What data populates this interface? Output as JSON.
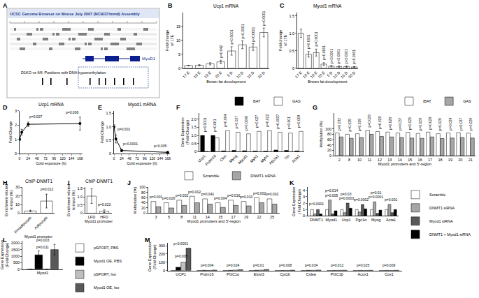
{
  "genome_browser": {
    "panel": "A",
    "title": "UCSC Genome Browser on Mouse July 2007 (NCBI37/mm9) Assembly",
    "gene": "MyoD1",
    "track": "D1KO vs fl/fl: Positions with DNA hypomethylation"
  },
  "chart_data": [
    {
      "panel": "B",
      "type": "bar",
      "title": "Ucp1 mRNA",
      "x_label": "Brown fat development",
      "y_label": "Fold change of 17E",
      "categories": [
        "17 E",
        "18 E",
        "19 E",
        "20 E",
        "5 D",
        "10 D",
        "15 D",
        "30 D"
      ],
      "values": [
        1,
        1.1,
        1.6,
        2.3,
        6.2,
        8.4,
        7.6,
        12.8
      ],
      "errors": [
        0.1,
        0.2,
        0.4,
        0.6,
        1.5,
        1.4,
        1.2,
        1.6
      ],
      "color": "#ffffff",
      "ylim": [
        0,
        20
      ],
      "yticks": [
        0,
        5,
        10,
        15
      ],
      "annotations": [
        {
          "text": "p=0.042",
          "category": "20 E",
          "y": 3.2
        },
        {
          "text": "p<0.0001",
          "category": "5 D",
          "y": 8
        },
        {
          "text": "p<0.0001",
          "category": "10 D",
          "y": 10.1
        },
        {
          "text": "p<0.0001",
          "category": "15 D",
          "y": 9.1
        },
        {
          "text": "p<0.0001",
          "category": "30 D",
          "y": 14.7
        }
      ]
    },
    {
      "panel": "C",
      "type": "bar",
      "title": "Myod1 mRNA",
      "x_label": "Brown fat development",
      "y_label": "Fold change of 17E",
      "categories": [
        "17 E",
        "18 E",
        "19 E",
        "20 E",
        "5 D",
        "10 D",
        "15 D",
        "30 D"
      ],
      "values": [
        1,
        0.4,
        0.45,
        0.12,
        0.06,
        0.05,
        0.05,
        0.04
      ],
      "errors": [
        0.12,
        0.08,
        0.1,
        0.04,
        0.02,
        0.02,
        0.02,
        0.01
      ],
      "color": "#ffffff",
      "ylim": [
        0,
        1.6
      ],
      "yticks": [
        0,
        0.5,
        {
          "value": 1,
          "label": "1.0"
        },
        1.5
      ],
      "annotations": [
        {
          "text": "p=0.0001",
          "category": "18 E",
          "y": 0.51
        },
        {
          "text": "p=0.0001",
          "category": "19 E",
          "y": 0.58
        },
        {
          "text": "p<0.0001",
          "category": "20 E",
          "y": 0.19
        },
        {
          "text": "p<0.0001",
          "category": "5 D",
          "y": 0.11
        },
        {
          "text": "p<0.0001",
          "category": "10 D",
          "y": 0.1
        },
        {
          "text": "p<0.0001",
          "category": "15 D",
          "y": 0.1
        },
        {
          "text": "p<0.0001",
          "category": "30 D",
          "y": 0.08
        }
      ]
    },
    {
      "panel": "D",
      "type": "line",
      "title": "Ucp1 mRNA",
      "x_label": "Cold exposure (h)",
      "y_label": "Fold Change",
      "x": [
        0,
        6,
        24,
        168
      ],
      "values": [
        1,
        1.5,
        2.05,
        2.1
      ],
      "errors": [
        0.05,
        0.2,
        0.15,
        0.45
      ],
      "color": "#000000",
      "marker": "circle",
      "xlim": [
        0,
        175
      ],
      "xticks": [
        0,
        24,
        48,
        72,
        96,
        120,
        144,
        168
      ],
      "ylim": [
        0,
        3
      ],
      "yticks": [
        0,
        1,
        2,
        3
      ],
      "annotations": [
        {
          "text": "p=0.007",
          "x": 24,
          "y": 2.35
        },
        {
          "text": "p=0.006",
          "x": 168,
          "y": 2.65
        }
      ]
    },
    {
      "panel": "E",
      "type": "line",
      "title": "Myod1 mRNA",
      "x_label": "Cold exposure (h)",
      "y_label": "Fold Change",
      "x": [
        0,
        6,
        24,
        168
      ],
      "values": [
        1,
        0.55,
        0.12,
        0.05
      ],
      "errors": [
        0.08,
        0.15,
        0.05,
        0.03
      ],
      "color": "#000000",
      "marker": "circle",
      "xlim": [
        0,
        175
      ],
      "xticks": [
        0,
        24,
        48,
        72,
        96,
        120,
        144,
        168
      ],
      "ylim": [
        0,
        1.6
      ],
      "yticks": [
        0,
        0.5,
        {
          "value": 1,
          "label": "1.0"
        },
        1.5
      ],
      "annotations": [
        {
          "text": "p=0.001",
          "x": 6,
          "y": 0.78
        },
        {
          "text": "p<0.0001",
          "x": 24,
          "y": 0.25
        },
        {
          "text": "p<0.005",
          "x": 168,
          "y": 0.15
        }
      ]
    },
    {
      "panel": "F",
      "type": "bar",
      "y_label": "Gene Expression (Fold Change)",
      "categories": [
        "Ucp1",
        "Prdm16",
        "Ckm",
        "Myog",
        "Myod1",
        "Myh1",
        "Myh4",
        "Atp2a1",
        "Ttn",
        "Acta1"
      ],
      "series": [
        {
          "name": "BAT",
          "color": "#000000",
          "values": [
            1,
            1,
            0.05,
            0.08,
            0.06,
            0.04,
            0.03,
            0.1,
            0.08,
            0.05
          ]
        },
        {
          "name": "GAS",
          "color": "#ffffff",
          "values": [
            0.02,
            0.85,
            1.3,
            1.2,
            1.1,
            1.25,
            1.3,
            1.2,
            1.15,
            1.25
          ]
        }
      ],
      "legend": "top right",
      "ylim": [
        0,
        2.4
      ],
      "yticks": [
        0,
        0.5,
        {
          "value": 1,
          "label": "1.0"
        },
        1.5,
        {
          "value": 2,
          "label": "2.0"
        }
      ],
      "annotations": [
        {
          "text": "p<0.0001",
          "category": "Ucp1",
          "y": 1.12
        },
        {
          "text": "p=0.001",
          "category": "Prdm16",
          "y": 1.12
        },
        {
          "text": "p=0.004",
          "category": "Ckm",
          "y": 1.42
        },
        {
          "text": "p=0.027",
          "category": "Myog",
          "y": 1.32
        },
        {
          "text": "p=0.0006",
          "category": "Myod1",
          "y": 1.22
        },
        {
          "text": "p=0.027",
          "category": "Myh1",
          "y": 1.37
        },
        {
          "text": "p=0.022",
          "category": "Myh4",
          "y": 1.42
        },
        {
          "text": "p=0.0037",
          "category": "Atp2a1",
          "y": 1.32
        },
        {
          "text": "p=0.001",
          "category": "Ttn",
          "y": 1.27
        },
        {
          "text": "p=0.009",
          "category": "Acta1",
          "y": 1.37
        }
      ]
    },
    {
      "panel": "G",
      "type": "bar",
      "x_label": "Myod1 promoters and 5'-region",
      "y_label": "Methylation (%)",
      "categories": [
        "2",
        "8",
        "10",
        "11",
        "12",
        "13",
        "14",
        "15",
        "16",
        "17",
        "18",
        "19",
        "20",
        "21"
      ],
      "series": [
        {
          "name": "iBAT",
          "color": "#ffffff",
          "values": [
            85,
            80,
            82,
            95,
            90,
            88,
            85,
            87,
            83,
            88,
            82,
            85,
            86,
            84
          ]
        },
        {
          "name": "GAS",
          "color": "#a6a6a6",
          "values": [
            70,
            65,
            68,
            80,
            72,
            70,
            68,
            66,
            65,
            70,
            64,
            66,
            68,
            66
          ]
        }
      ],
      "legend": "top right",
      "ylim": [
        0,
        160
      ],
      "yticks": [
        0,
        20,
        40,
        60,
        80,
        100
      ],
      "annotations": [
        {
          "text": "p=0.032",
          "category": "2",
          "y": 89
        },
        {
          "text": "p=0.029",
          "category": "8",
          "y": 84
        },
        {
          "text": "p=0.029",
          "category": "10",
          "y": 86
        },
        {
          "text": "p=0.029",
          "category": "11",
          "y": 99
        },
        {
          "text": "p=0.029",
          "category": "12",
          "y": 94
        },
        {
          "text": "p=0.029",
          "category": "13",
          "y": 92
        },
        {
          "text": "p=0.037",
          "category": "14",
          "y": 89
        },
        {
          "text": "p=0.029",
          "category": "15",
          "y": 91
        },
        {
          "text": "p=0.029",
          "category": "16",
          "y": 87
        },
        {
          "text": "p=0.029",
          "category": "17",
          "y": 92
        },
        {
          "text": "p=0.029",
          "category": "18",
          "y": 86
        },
        {
          "text": "p=0.029",
          "category": "19",
          "y": 89
        },
        {
          "text": "p=0.037",
          "category": "20",
          "y": 90
        },
        {
          "text": "p=0.029",
          "category": "21",
          "y": 88
        }
      ]
    },
    {
      "panel": "H",
      "type": "bar",
      "title": "ChIP-DNMT1",
      "x_label": "Myod1 promoter",
      "y_label": "Enrichment related to input (%)",
      "categories": [
        "Preadipocyte",
        "Adipocyte"
      ],
      "values": [
        2.5,
        14
      ],
      "errors": [
        1,
        8
      ],
      "color": "#ffffff",
      "ylim": [
        0,
        30
      ],
      "yticks": [
        0,
        10,
        20,
        30
      ],
      "annotations": [
        {
          "text": "p=0.012",
          "category": "Adipocyte",
          "y": 24
        }
      ]
    },
    {
      "panel": "I",
      "type": "bar",
      "title": "ChIP-DNMT1",
      "x_label": "Myod1 promoter",
      "y_label": "Enrichment related to input (%)",
      "categories": [
        "LFD",
        "HFD"
      ],
      "values": [
        1.05,
        0.12
      ],
      "errors": [
        0.45,
        0.08
      ],
      "color": "#ffffff",
      "ylim": [
        0,
        1.6
      ],
      "yticks": [
        0,
        0.5,
        {
          "value": 1,
          "label": "1.0"
        },
        1.5
      ],
      "annotations": [
        {
          "text": "p=0.023",
          "category": "HFD",
          "y": 0.3
        }
      ]
    },
    {
      "panel": "J",
      "type": "bar",
      "x_label": "Myod1 promoters and 5'-region",
      "y_label": "Methylation (%)",
      "categories": [
        "3",
        "5",
        "8",
        "11",
        "14",
        "15",
        "17",
        "19",
        "22",
        "25"
      ],
      "series": [
        {
          "name": "Scramble",
          "color": "#ffffff",
          "values": [
            45,
            40,
            50,
            65,
            55,
            40,
            50,
            45,
            60,
            55
          ]
        },
        {
          "name": "DNMT1 siRNA",
          "color": "#a6a6a6",
          "values": [
            25,
            20,
            30,
            40,
            35,
            22,
            30,
            28,
            40,
            35
          ]
        }
      ],
      "legend": "top right",
      "ylim": [
        0,
        100
      ],
      "yticks": [
        0,
        20,
        40,
        60,
        80,
        100
      ],
      "annotations": [
        {
          "text": "p=0.001",
          "category": "3",
          "y": 49
        },
        {
          "text": "p=0.026",
          "category": "5",
          "y": 44
        },
        {
          "text": "p=0.002",
          "category": "8",
          "y": 54
        },
        {
          "text": "p=0.002",
          "category": "11",
          "y": 69
        },
        {
          "text": "p=0.041",
          "category": "14",
          "y": 59
        },
        {
          "text": "p=0.004",
          "category": "15",
          "y": 44
        },
        {
          "text": "p=0.016",
          "category": "17",
          "y": 54
        },
        {
          "text": "p=0.010",
          "category": "19",
          "y": 49
        },
        {
          "text": "p=0.002",
          "category": "22",
          "y": 64
        },
        {
          "text": "p=0.002",
          "category": "25",
          "y": 59
        }
      ]
    },
    {
      "panel": "K",
      "type": "bar",
      "y_label": "Gene Expression (Fold Change)",
      "categories": [
        "DNMT1",
        "Myod1",
        "Ucp1",
        "Pgc1α",
        "Myog",
        "Acta1"
      ],
      "series": [
        {
          "name": "Scramble",
          "color": "#ffffff",
          "values": [
            1,
            1,
            1,
            1,
            1,
            1
          ]
        },
        {
          "name": "DNMT1 siRNA",
          "color": "#a6a6a6",
          "values": [
            0.3,
            2.5,
            0.5,
            0.6,
            2.2,
            1.8
          ]
        },
        {
          "name": "Myod1 siRNA",
          "color": "#595959",
          "values": [
            1,
            0.3,
            2,
            1.8,
            0.4,
            0.5
          ]
        },
        {
          "name": "DNMT1 + Myod1 siRNA",
          "color": "#000000",
          "values": [
            0.3,
            0.8,
            1.2,
            1.1,
            0.9,
            1
          ]
        }
      ],
      "legend": "right",
      "ylim": [
        0,
        4.5
      ],
      "yticks": [
        0,
        1,
        2,
        3,
        4
      ],
      "annotations": [
        {
          "text": "p<0.0001",
          "category": "DNMT1",
          "y": 1.3
        },
        {
          "text": "p=0.005",
          "category": "Myod1",
          "y": 2.7
        },
        {
          "text": "p=0.014",
          "category": "Myod1",
          "y": 3.4
        },
        {
          "text": "p=0.0003",
          "category": "Ucp1",
          "y": 2.2
        },
        {
          "text": "p=0.03",
          "category": "Ucp1",
          "y": 2.9
        },
        {
          "text": "p=0.0002",
          "category": "Pgc1α",
          "y": 2.0
        },
        {
          "text": "p<0.0001",
          "category": "Myog",
          "y": 2.4
        },
        {
          "text": "p=0.01",
          "category": "Myog",
          "y": 3.1
        },
        {
          "text": "p=0.001",
          "category": "Acta1",
          "y": 2.0
        }
      ]
    },
    {
      "panel": "L",
      "type": "bar",
      "y_label": "Gene Expression (Fold Change)",
      "categories": [
        "Myod1"
      ],
      "series": [
        {
          "name": "pSPORT, PBS",
          "color": "#ffffff",
          "values": [
            1
          ],
          "errors": [
            0.3
          ]
        },
        {
          "name": "Myod1 OE, PBS",
          "color": "#000000",
          "values": [
            1100
          ],
          "errors": [
            300
          ]
        },
        {
          "name": "pSPORT, Iso",
          "color": "#bfbfbf",
          "values": [
            1
          ],
          "errors": [
            0.3
          ]
        },
        {
          "name": "Myod1 OE, Iso",
          "color": "#595959",
          "values": [
            1500
          ],
          "errors": [
            400
          ]
        }
      ],
      "legend": "right",
      "ylim": [
        0,
        2200
      ],
      "yticks": [
        0,
        500,
        1000,
        1500,
        2000
      ],
      "annotations": [
        {
          "text": "p=0.011",
          "category": "Myod1",
          "y": 1450
        },
        {
          "text": "p=0.003",
          "category": "Myod1",
          "y": 1950
        }
      ]
    },
    {
      "panel": "M",
      "type": "bar",
      "y_label": "Gene Expression (Fold Change)",
      "categories": [
        "UCP1",
        "Prdm16",
        "PGC1α",
        "Elovl3",
        "Cpt1b",
        "Cidea",
        "PGC1β",
        "Acox1",
        "Cox1"
      ],
      "series": [
        {
          "name": "pSPORT, PBS",
          "color": "#ffffff",
          "values": [
            1,
            1,
            1,
            1,
            1,
            1,
            1,
            1,
            1
          ]
        },
        {
          "name": "Myod1 OE, PBS",
          "color": "#000000",
          "values": [
            40,
            3,
            3,
            4,
            2,
            3,
            2,
            2,
            2
          ]
        },
        {
          "name": "pSPORT, Iso",
          "color": "#bfbfbf",
          "values": [
            100,
            2,
            6,
            5,
            2,
            3,
            3,
            2,
            2
          ]
        },
        {
          "name": "Myod1 OE, Iso",
          "color": "#595959",
          "values": [
            270,
            6,
            10,
            12,
            5,
            6,
            4,
            3,
            3
          ]
        }
      ],
      "ylim": [
        0,
        330
      ],
      "yticks": [
        0,
        100,
        200,
        300
      ],
      "annotations": [
        {
          "text": "p<0.0001",
          "category": "UCP1",
          "y": 285
        },
        {
          "text": "p=0.005",
          "category": "UCP1",
          "y": 130
        },
        {
          "text": "p=0.004",
          "category": "Prdm16",
          "y": 25
        },
        {
          "text": "p=0.024",
          "category": "PGC1α",
          "y": 25
        },
        {
          "text": "p=0.01",
          "category": "Elovl3",
          "y": 25
        },
        {
          "text": "p=0.008",
          "category": "Cpt1b",
          "y": 25
        },
        {
          "text": "p=0.034",
          "category": "Cidea",
          "y": 25
        },
        {
          "text": "p=0.012",
          "category": "PGC1β",
          "y": 25
        },
        {
          "text": "p=0.025",
          "category": "Acox1",
          "y": 25
        },
        {
          "text": "p=0.009",
          "category": "Cox1",
          "y": 25
        }
      ]
    }
  ]
}
